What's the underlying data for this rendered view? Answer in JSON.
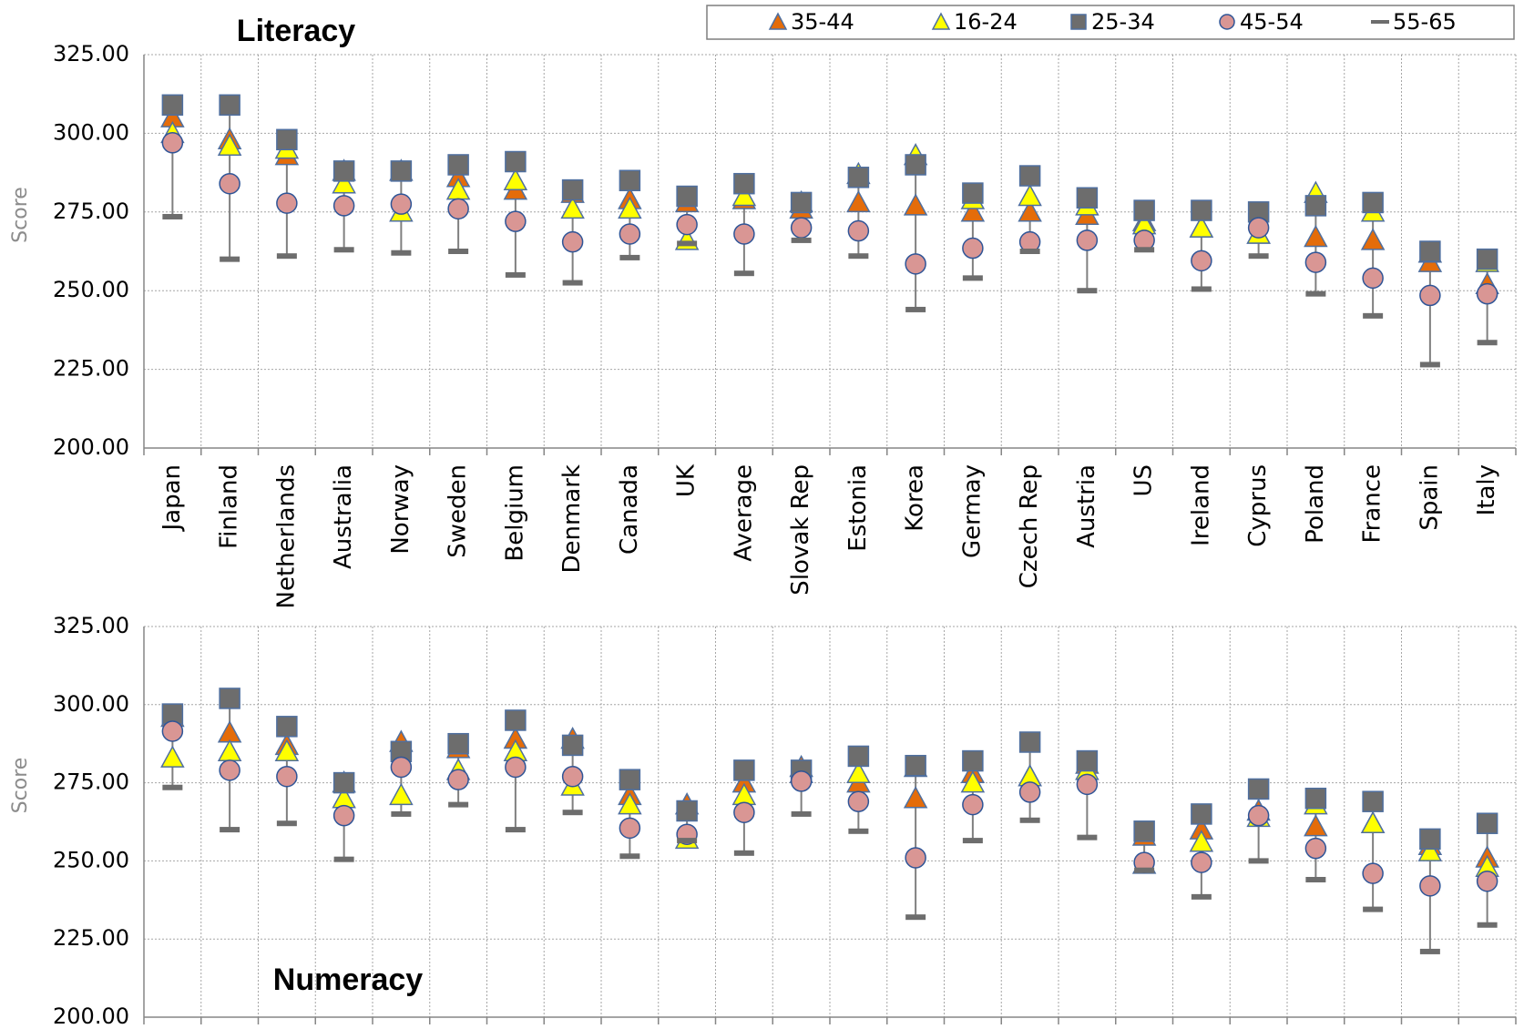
{
  "chart_data": [
    {
      "type": "dot",
      "title": "Literacy",
      "ylabel": "Score",
      "categories": [
        "Japan",
        "Finland",
        "Netherlands",
        "Australia",
        "Norway",
        "Sweden",
        "Belgium",
        "Denmark",
        "Canada",
        "UK",
        "Average",
        "Slovak Rep",
        "Estonia",
        "Korea",
        "Germay",
        "Czech Rep",
        "Austria",
        "US",
        "Ireland",
        "Cyprus",
        "Poland",
        "France",
        "Spain",
        "Italy"
      ],
      "ylim": [
        200,
        325
      ],
      "yticks": [
        {
          "value": 200,
          "label": "200.00"
        },
        {
          "value": 225,
          "label": "225.00"
        },
        {
          "value": 250,
          "label": "250.00"
        },
        {
          "value": 275,
          "label": "275.00"
        },
        {
          "value": 300,
          "label": "300.00"
        },
        {
          "value": 325,
          "label": "325.00"
        }
      ],
      "grid": true,
      "high_low_lines": true,
      "series": [
        {
          "name": "35-44",
          "color": "#e46c0a",
          "marker": "triangle",
          "values": [
            305,
            298,
            293,
            288,
            288,
            286,
            282,
            281,
            279,
            278,
            279,
            276,
            278,
            277,
            275,
            275,
            274,
            272,
            270,
            268,
            267,
            266,
            259,
            252
          ]
        },
        {
          "name": "16-24",
          "color": "#ffff00",
          "marker": "triangle",
          "values": [
            300,
            296,
            295,
            284,
            275,
            282,
            285,
            276,
            276,
            266,
            280,
            278,
            287,
            293,
            279,
            280,
            277,
            271,
            270,
            268,
            281,
            275,
            262,
            259
          ]
        },
        {
          "name": "25-34",
          "color": "#6d6d6d",
          "marker": "square",
          "values": [
            309,
            309,
            298,
            288,
            288,
            290,
            291,
            282,
            285,
            280,
            284,
            278,
            286,
            290,
            281,
            286.5,
            279.5,
            275.5,
            275.5,
            275,
            277,
            278,
            262.5,
            260
          ]
        },
        {
          "name": "45-54",
          "color": "#d99694",
          "marker": "circle",
          "values": [
            297,
            284,
            277.8,
            277,
            277.5,
            276,
            272,
            265.5,
            268,
            271,
            268,
            270,
            269,
            258.5,
            263.5,
            265.5,
            266,
            266,
            259.5,
            270,
            259,
            254,
            248.5,
            249
          ]
        },
        {
          "name": "55-65",
          "color": "#6d6d6d",
          "marker": "dash",
          "values": [
            273.5,
            260,
            261,
            263,
            262,
            262.5,
            255,
            252.5,
            260.5,
            265,
            255.5,
            266,
            261,
            244,
            254,
            262.5,
            250,
            263,
            250.5,
            261,
            249,
            242,
            226.5,
            233.5
          ]
        }
      ]
    },
    {
      "type": "dot",
      "title": "Numeracy",
      "ylabel": "Score",
      "ylim": [
        200,
        325
      ],
      "yticks": [
        {
          "value": 200,
          "label": "200.00"
        },
        {
          "value": 225,
          "label": "225.00"
        },
        {
          "value": 250,
          "label": "250.00"
        },
        {
          "value": 275,
          "label": "275.00"
        },
        {
          "value": 300,
          "label": "300.00"
        },
        {
          "value": 325,
          "label": "325.00"
        }
      ],
      "grid": true,
      "high_low_lines": true,
      "series": [
        {
          "color": "#e46c0a",
          "marker": "triangle",
          "values": [
            296,
            291,
            287,
            275,
            288,
            286,
            289,
            289,
            271,
            268,
            275,
            280,
            275,
            270,
            278,
            277,
            281,
            258,
            260,
            266,
            261,
            262,
            255,
            251
          ]
        },
        {
          "color": "#ffff00",
          "marker": "triangle",
          "values": [
            283,
            285,
            285,
            270,
            271,
            279,
            285,
            274,
            268,
            257,
            271,
            278,
            278,
            280,
            275,
            277,
            279,
            249,
            256,
            264,
            268,
            262,
            253,
            248
          ]
        },
        {
          "color": "#6d6d6d",
          "marker": "square",
          "values": [
            297,
            302,
            293,
            275,
            285,
            287.5,
            295,
            287,
            276,
            266,
            279,
            279,
            283.5,
            280.5,
            282,
            288,
            282,
            259.5,
            265,
            273,
            270,
            269,
            257,
            262
          ]
        },
        {
          "color": "#d99694",
          "marker": "circle",
          "values": [
            291.5,
            279,
            277,
            264.5,
            280,
            276,
            280,
            277,
            260.5,
            258.5,
            265.5,
            275.5,
            269,
            251,
            268,
            272,
            274.5,
            249.5,
            249.5,
            264.5,
            254,
            246,
            242,
            243.5
          ]
        },
        {
          "color": "#6d6d6d",
          "marker": "dash",
          "values": [
            273.5,
            260,
            262,
            250.5,
            265,
            268,
            260,
            265.5,
            251.5,
            256.5,
            252.5,
            265,
            259.5,
            232,
            256.5,
            263,
            257.5,
            247,
            238.5,
            250,
            244,
            234.5,
            221,
            229.5
          ]
        }
      ]
    }
  ]
}
